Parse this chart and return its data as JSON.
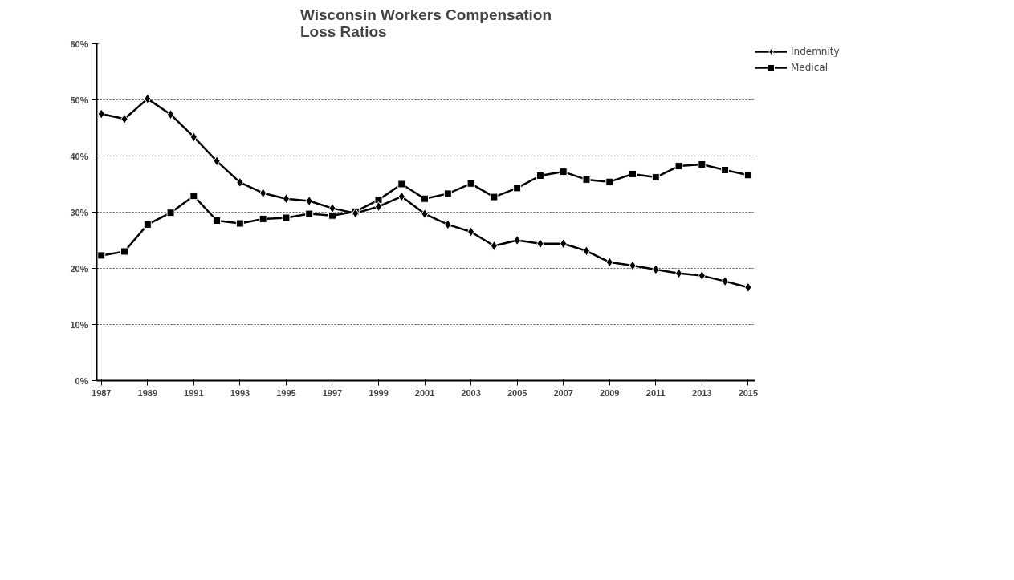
{
  "chart_data": {
    "type": "line",
    "title": "Wisconsin Workers Compensation\nLoss Ratios",
    "x": [
      1987,
      1988,
      1989,
      1990,
      1991,
      1992,
      1993,
      1994,
      1995,
      1996,
      1997,
      1998,
      1999,
      2000,
      2001,
      2002,
      2003,
      2004,
      2005,
      2006,
      2007,
      2008,
      2009,
      2010,
      2011,
      2012,
      2013,
      2014,
      2015
    ],
    "series": [
      {
        "name": "Indemnity",
        "color": "#000000",
        "marker": "diamond",
        "values": [
          47.5,
          46.6,
          50.2,
          47.4,
          43.4,
          39.1,
          35.3,
          33.4,
          32.4,
          32.0,
          30.7,
          29.8,
          31.0,
          32.8,
          29.7,
          27.8,
          26.5,
          24.0,
          25.0,
          24.4,
          24.4,
          23.1,
          21.1,
          20.5,
          19.8,
          19.1,
          18.7,
          17.7,
          16.6
        ]
      },
      {
        "name": "Medical",
        "color": "#000000",
        "marker": "square",
        "values": [
          22.3,
          23.0,
          27.8,
          29.9,
          32.9,
          28.5,
          28.0,
          28.8,
          29.0,
          29.7,
          29.4,
          30.1,
          32.2,
          35.0,
          32.4,
          33.3,
          35.1,
          32.7,
          34.3,
          36.5,
          37.2,
          35.8,
          35.4,
          36.8,
          36.2,
          38.2,
          38.5,
          37.5,
          36.6
        ]
      }
    ],
    "xlim": [
      1986.8,
      2015.3
    ],
    "xticks": [
      1987,
      1989,
      1991,
      1993,
      1995,
      1997,
      1999,
      2001,
      2003,
      2005,
      2007,
      2009,
      2011,
      2013,
      2015
    ],
    "ylim": [
      0,
      60
    ],
    "yticks": [
      {
        "value": 0,
        "label": "0%"
      },
      {
        "value": 10,
        "label": "10%"
      },
      {
        "value": 20,
        "label": "20%"
      },
      {
        "value": 30,
        "label": "30%"
      },
      {
        "value": 40,
        "label": "40%"
      },
      {
        "value": 50,
        "label": "50%"
      },
      {
        "value": 60,
        "label": "60%"
      }
    ],
    "grid": "y",
    "legend": "right",
    "line_style": "solid"
  }
}
